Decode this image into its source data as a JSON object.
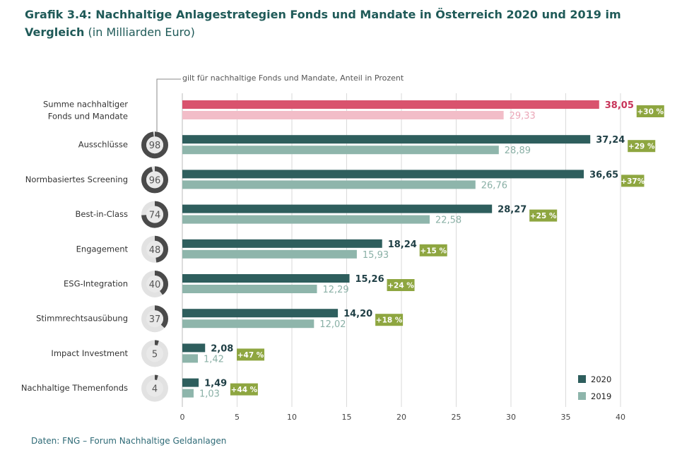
{
  "header": {
    "title": "Grafik 3.4: Nachhaltige Anlagestrategien Fonds und Mandate in Österreich 2020 und 2019 im Vergleich",
    "unit": "(in Milliarden Euro)"
  },
  "note": "gilt für nachhaltige Fonds und Mandate, Anteil in Prozent",
  "source": "Daten: FNG – Forum Nachhaltige Geldanlagen",
  "chart_data": {
    "type": "bar",
    "orientation": "horizontal",
    "categories": [
      "Summe nachhaltiger Fonds und Mandate",
      "Ausschlüsse",
      "Normbasiertes Screening",
      "Best-in-Class",
      "Engagement",
      "ESG-Integration",
      "Stimmrechtsausübung",
      "Impact Investment",
      "Nachhaltige Themenfonds"
    ],
    "category_lines": [
      [
        "Summe nachhaltiger",
        "Fonds und Mandate"
      ],
      [
        "Ausschlüsse"
      ],
      [
        "Normbasiertes Screening"
      ],
      [
        "Best-in-Class"
      ],
      [
        "Engagement"
      ],
      [
        "ESG-Integration"
      ],
      [
        "Stimmrechtsausübung"
      ],
      [
        "Impact Investment"
      ],
      [
        "Nachhaltige Themenfonds"
      ]
    ],
    "series": [
      {
        "name": "2020",
        "values": [
          38.05,
          37.24,
          36.65,
          28.27,
          18.24,
          15.26,
          14.2,
          2.08,
          1.49
        ],
        "labels": [
          "38,05",
          "37,24",
          "36,65",
          "28,27",
          "18,24",
          "15,26",
          "14,20",
          "2,08",
          "1,49"
        ]
      },
      {
        "name": "2019",
        "values": [
          29.33,
          28.89,
          26.76,
          22.58,
          15.93,
          12.29,
          12.02,
          1.42,
          1.03
        ],
        "labels": [
          "29,33",
          "28,89",
          "26,76",
          "22,58",
          "15,93",
          "12,29",
          "12,02",
          "1,42",
          "1,03"
        ]
      }
    ],
    "growth_labels": [
      "+30 %",
      "+29 %",
      "+37%",
      "+25 %",
      "+15 %",
      "+24 %",
      "+18 %",
      "+47 %",
      "+44 %"
    ],
    "share_percent": [
      null,
      98,
      96,
      74,
      48,
      40,
      37,
      5,
      4
    ],
    "xticks": [
      0,
      5,
      10,
      15,
      20,
      25,
      30,
      35,
      40
    ],
    "xlim": [
      0,
      40
    ],
    "grid": true,
    "legend": "bottom-right",
    "colors": {
      "2020": "#2e5e5d",
      "2019": "#8eb5ab",
      "total_2020": "#d9536e",
      "total_2019": "#f2bdc8",
      "growth_badge": "#8ea640",
      "ring_dark": "#4a4a4a",
      "ring_light": "#e2e2e2",
      "value_2020": "#1f3f45",
      "value_2019": "#8ab0a6",
      "total_value_2020": "#c8355a",
      "total_value_2019": "#eba7b8"
    }
  }
}
